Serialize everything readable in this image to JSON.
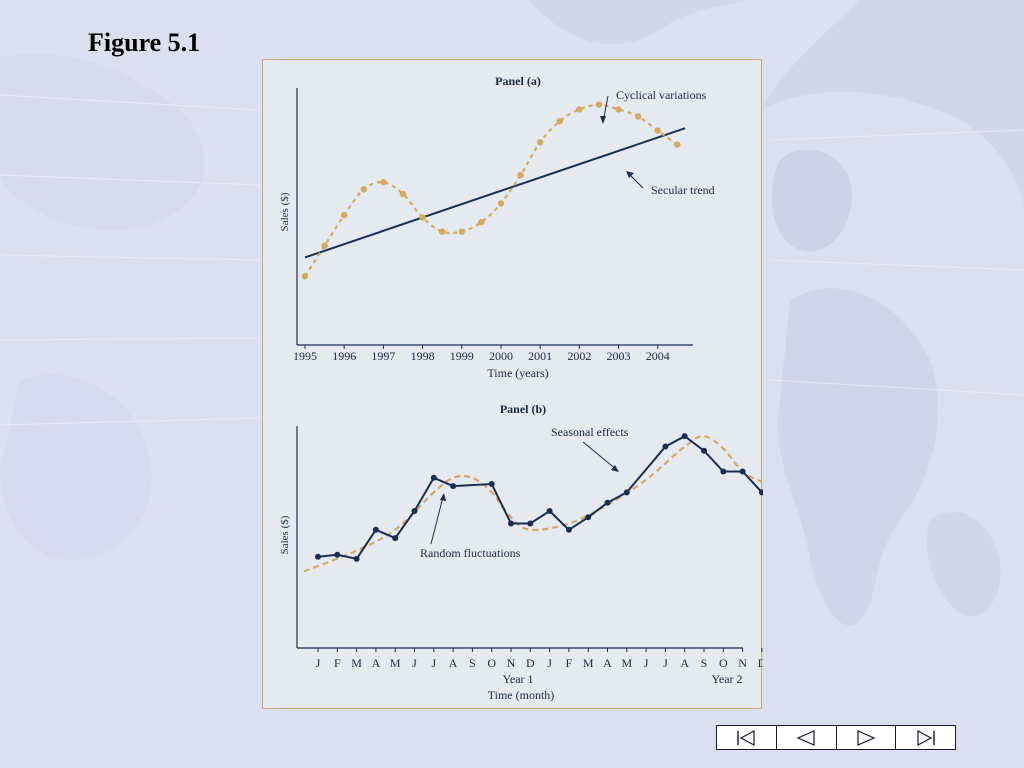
{
  "slide": {
    "title": "Figure 5.1"
  },
  "colors": {
    "background": "#dcdff0",
    "panel_background": "#e5eaf0",
    "navy": "#1a2e55",
    "tan": "#d4aa5e"
  },
  "nav": {
    "buttons": [
      {
        "name": "first-slide-button",
        "icon": "skip-to-start-icon"
      },
      {
        "name": "previous-slide-button",
        "icon": "triangle-left-icon"
      },
      {
        "name": "next-slide-button",
        "icon": "triangle-right-icon"
      },
      {
        "name": "last-slide-button",
        "icon": "skip-to-end-icon"
      }
    ]
  },
  "chart_data": [
    {
      "type": "line",
      "title": "Panel (a)",
      "xlabel": "Time (years)",
      "ylabel": "Sales ($)",
      "x_tick_labels": [
        "1995",
        "1996",
        "1997",
        "1998",
        "1999",
        "2000",
        "2001",
        "2002",
        "2003",
        "2004"
      ],
      "xlim": [
        1995,
        2004.9
      ],
      "ylim": [
        0,
        10
      ],
      "grid": false,
      "annotations": [
        "Cyclical variations",
        "Secular trend"
      ],
      "series": [
        {
          "style": "dotted-tan",
          "x": [
            1995.0,
            1995.5,
            1996.0,
            1996.5,
            1997.0,
            1997.5,
            1998.0,
            1998.5,
            1999.0,
            1999.5,
            2000.0,
            2000.5,
            2001.0,
            2001.5,
            2002.0,
            2002.5,
            2003.0,
            2003.5,
            2004.0,
            2004.5
          ],
          "y": [
            2.5,
            3.8,
            5.1,
            6.2,
            6.5,
            6.0,
            5.0,
            4.4,
            4.4,
            4.8,
            5.6,
            6.8,
            8.2,
            9.1,
            9.6,
            9.8,
            9.6,
            9.3,
            8.7,
            8.1
          ]
        },
        {
          "style": "solid-navy",
          "x": [
            1995.0,
            2004.7
          ],
          "y": [
            3.3,
            8.8
          ]
        }
      ]
    },
    {
      "type": "line",
      "title": "Panel (b)",
      "xlabel": "Time (month)",
      "ylabel": "Sales ($)",
      "x_tick_labels": [
        "J",
        "F",
        "M",
        "A",
        "M",
        "J",
        "J",
        "A",
        "S",
        "O",
        "N",
        "D",
        "J",
        "F",
        "M",
        "A",
        "M",
        "J",
        "J",
        "A",
        "S",
        "O",
        "N",
        "D"
      ],
      "x_group_labels": [
        "Year 1",
        "Year 2"
      ],
      "ylim": [
        0,
        10
      ],
      "grid": false,
      "annotations": [
        "Seasonal effects",
        "Random fluctuations"
      ],
      "series": [
        {
          "style": "solid-navy-markers",
          "values": [
            4.0,
            4.1,
            3.9,
            5.3,
            4.9,
            6.2,
            7.8,
            7.4,
            7.5,
            5.6,
            5.6,
            6.2,
            5.3,
            5.9,
            6.6,
            7.1,
            9.3,
            9.8,
            9.1,
            8.1,
            8.1,
            7.1
          ]
        },
        {
          "style": "dashed-tan",
          "x": [
            0.0,
            2.0,
            4.0,
            6.0,
            7.0,
            8.0,
            9.0,
            10.0,
            11.0,
            13.0,
            15.0,
            17.0,
            19.0,
            20.0,
            21.0,
            22.0,
            23.0
          ],
          "y": [
            3.3,
            4.3,
            5.3,
            7.1,
            7.8,
            7.8,
            7.1,
            5.9,
            5.3,
            5.6,
            6.5,
            7.7,
            9.3,
            9.8,
            9.2,
            8.1,
            7.6
          ]
        }
      ]
    }
  ]
}
